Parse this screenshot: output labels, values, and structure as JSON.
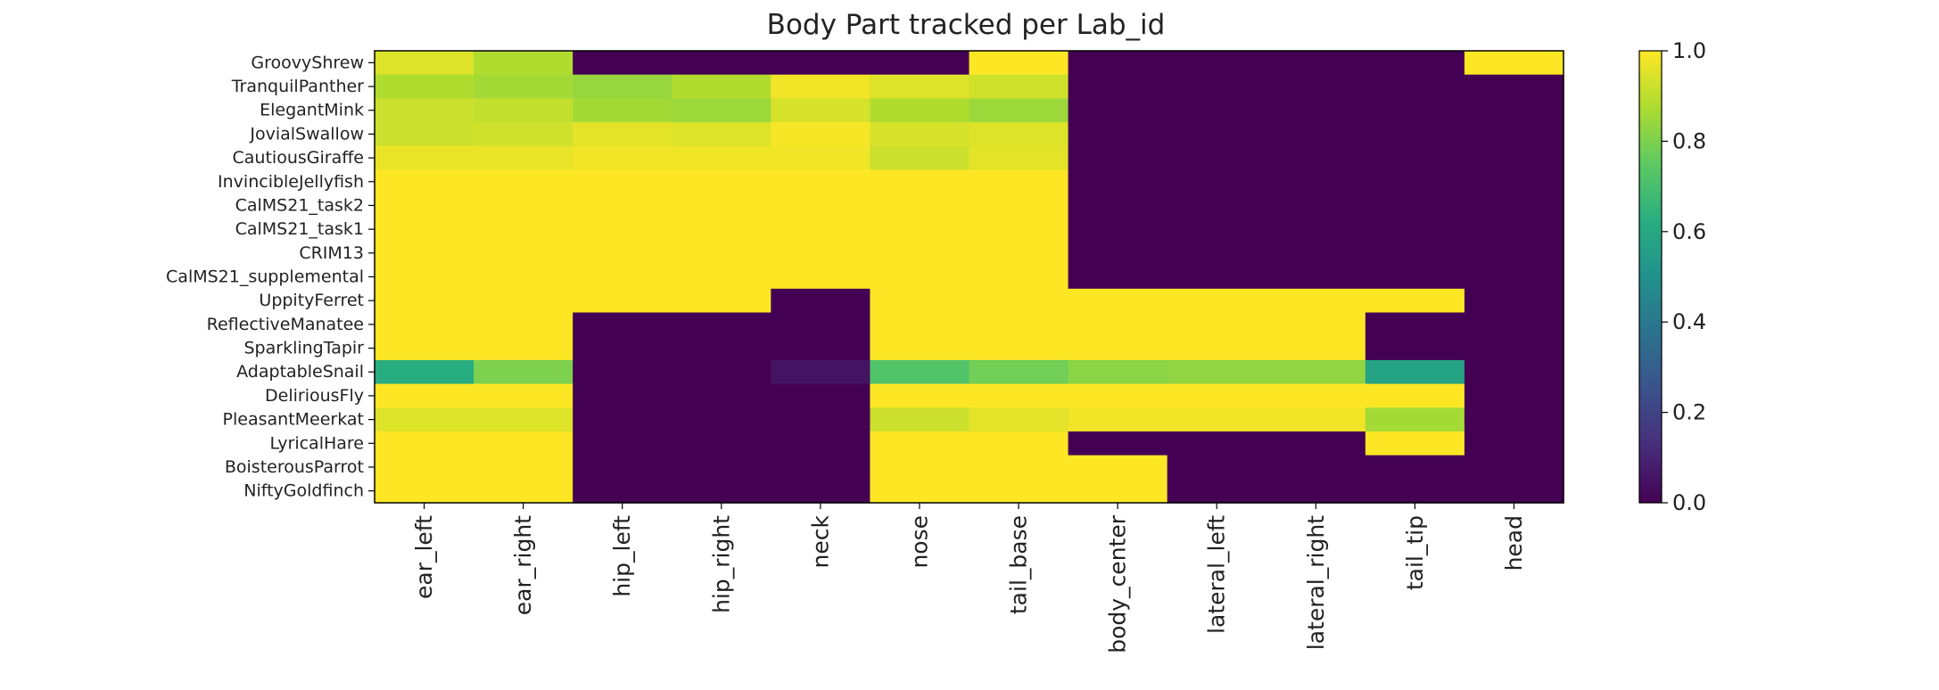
{
  "chart_data": {
    "type": "heatmap",
    "title": "Body Part tracked per Lab_id",
    "xlabel": "",
    "ylabel": "",
    "x_categories": [
      "ear_left",
      "ear_right",
      "hip_left",
      "hip_right",
      "neck",
      "nose",
      "tail_base",
      "body_center",
      "lateral_left",
      "lateral_right",
      "tail_tip",
      "head"
    ],
    "y_categories": [
      "GroovyShrew",
      "TranquilPanther",
      "ElegantMink",
      "JovialSwallow",
      "CautiousGiraffe",
      "InvincibleJellyfish",
      "CalMS21_task2",
      "CalMS21_task1",
      "CRIM13",
      "CalMS21_supplemental",
      "UppityFerret",
      "ReflectiveManatee",
      "SparklingTapir",
      "AdaptableSnail",
      "DeliriousFly",
      "PleasantMeerkat",
      "LyricalHare",
      "BoisterousParrot",
      "NiftyGoldfinch"
    ],
    "values": [
      [
        0.95,
        0.88,
        0,
        0,
        0,
        0,
        1.0,
        0,
        0,
        0,
        0,
        1.0
      ],
      [
        0.88,
        0.86,
        0.84,
        0.88,
        0.98,
        0.95,
        0.93,
        0,
        0,
        0,
        0,
        0
      ],
      [
        0.92,
        0.91,
        0.86,
        0.85,
        0.94,
        0.88,
        0.85,
        0,
        0,
        0,
        0,
        0
      ],
      [
        0.92,
        0.93,
        0.96,
        0.95,
        0.99,
        0.94,
        0.95,
        0,
        0,
        0,
        0,
        0
      ],
      [
        0.97,
        0.97,
        0.98,
        0.98,
        0.98,
        0.92,
        0.96,
        0,
        0,
        0,
        0,
        0
      ],
      [
        1.0,
        1.0,
        1.0,
        1.0,
        1.0,
        1.0,
        1.0,
        0,
        0,
        0,
        0,
        0
      ],
      [
        1.0,
        1.0,
        1.0,
        1.0,
        1.0,
        1.0,
        1.0,
        0,
        0,
        0,
        0,
        0
      ],
      [
        1.0,
        1.0,
        1.0,
        1.0,
        1.0,
        1.0,
        1.0,
        0,
        0,
        0,
        0,
        0
      ],
      [
        1.0,
        1.0,
        1.0,
        1.0,
        1.0,
        1.0,
        1.0,
        0,
        0,
        0,
        0,
        0
      ],
      [
        1.0,
        1.0,
        1.0,
        1.0,
        1.0,
        1.0,
        1.0,
        0,
        0,
        0,
        0,
        0
      ],
      [
        1.0,
        1.0,
        1.0,
        1.0,
        0,
        1.0,
        1.0,
        1.0,
        1.0,
        1.0,
        1.0,
        0
      ],
      [
        1.0,
        1.0,
        0,
        0,
        0,
        1.0,
        1.0,
        1.0,
        1.0,
        1.0,
        0,
        0
      ],
      [
        1.0,
        1.0,
        0,
        0,
        0,
        1.0,
        1.0,
        1.0,
        1.0,
        1.0,
        0,
        0
      ],
      [
        0.62,
        0.8,
        0,
        0,
        0.05,
        0.72,
        0.78,
        0.82,
        0.83,
        0.83,
        0.58,
        0
      ],
      [
        1.0,
        1.0,
        0,
        0,
        0,
        1.0,
        1.0,
        1.0,
        1.0,
        1.0,
        1.0,
        0
      ],
      [
        0.95,
        0.95,
        0,
        0,
        0,
        0.92,
        0.96,
        0.98,
        0.98,
        0.98,
        0.86,
        0
      ],
      [
        1.0,
        1.0,
        0,
        0,
        0,
        1.0,
        1.0,
        0,
        0,
        0,
        1.0,
        0
      ],
      [
        1.0,
        1.0,
        0,
        0,
        0,
        1.0,
        1.0,
        1.0,
        0,
        0,
        0,
        0
      ],
      [
        1.0,
        1.0,
        0,
        0,
        0,
        1.0,
        1.0,
        1.0,
        0,
        0,
        0,
        0
      ]
    ],
    "vmin": 0.0,
    "vmax": 1.0,
    "colormap": "viridis",
    "colorbar_ticks": [
      "0.0",
      "0.2",
      "0.4",
      "0.6",
      "0.8",
      "1.0"
    ],
    "colorbar_tick_values": [
      0.0,
      0.2,
      0.4,
      0.6,
      0.8,
      1.0
    ],
    "grid": false,
    "legend": "colorbar-right"
  }
}
